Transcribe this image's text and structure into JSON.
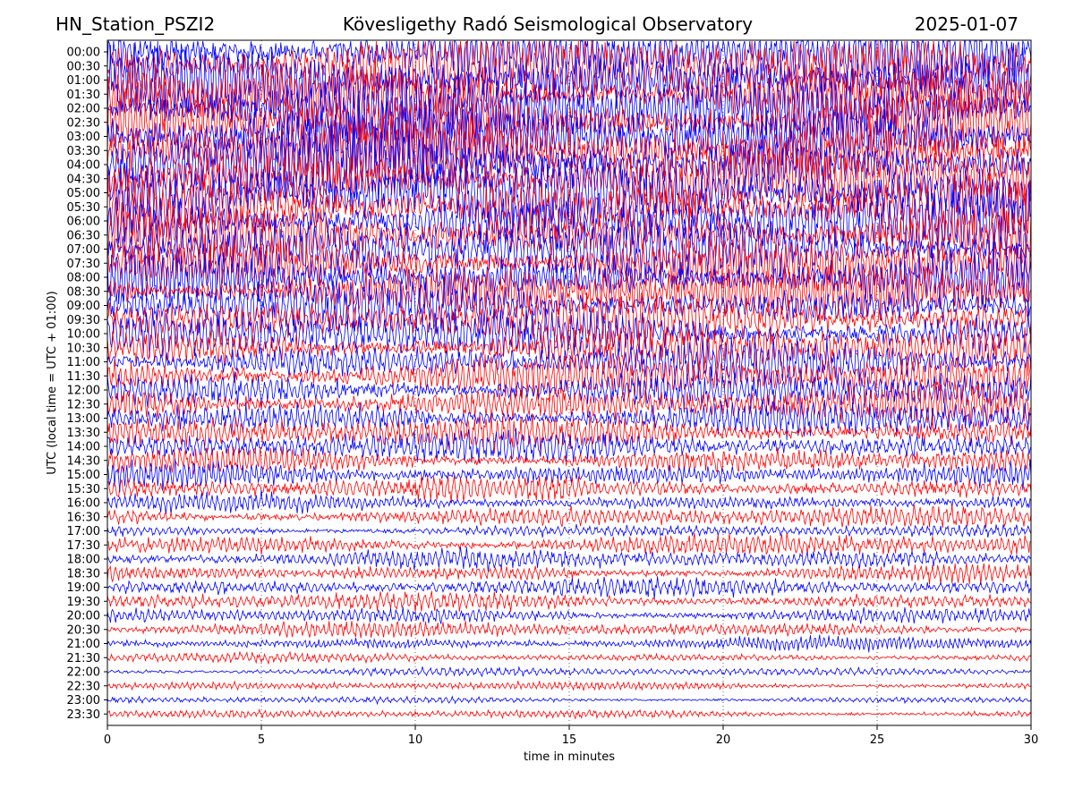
{
  "header": {
    "station": "HN_Station_PSZI2",
    "title": "Kövesligethy Radó Seismological Observatory",
    "date": "2025-01-07"
  },
  "chart_data": {
    "type": "line",
    "title": "Kövesligethy Radó Seismological Observatory",
    "xlabel": "time in minutes",
    "ylabel": "UTC (local time = UTC + 01:00)",
    "xlim": [
      0,
      30
    ],
    "x_ticks": [
      0,
      5,
      10,
      15,
      20,
      25,
      30
    ],
    "grid": "vertical dotted at x ticks",
    "colors": {
      "trace_a": "#0000ff",
      "trace_b": "#ff0000"
    },
    "rows": [
      {
        "label": "00:00",
        "amplitude": 5.0
      },
      {
        "label": "00:30",
        "amplitude": 5.0
      },
      {
        "label": "01:00",
        "amplitude": 5.0
      },
      {
        "label": "01:30",
        "amplitude": 5.0
      },
      {
        "label": "02:00",
        "amplitude": 5.0
      },
      {
        "label": "02:30",
        "amplitude": 5.0
      },
      {
        "label": "03:00",
        "amplitude": 5.0
      },
      {
        "label": "03:30",
        "amplitude": 5.0
      },
      {
        "label": "04:00",
        "amplitude": 5.0
      },
      {
        "label": "04:30",
        "amplitude": 5.0
      },
      {
        "label": "05:00",
        "amplitude": 5.0
      },
      {
        "label": "05:30",
        "amplitude": 4.8
      },
      {
        "label": "06:00",
        "amplitude": 4.6
      },
      {
        "label": "06:30",
        "amplitude": 4.5
      },
      {
        "label": "07:00",
        "amplitude": 4.3
      },
      {
        "label": "07:30",
        "amplitude": 4.2
      },
      {
        "label": "08:00",
        "amplitude": 4.0
      },
      {
        "label": "08:30",
        "amplitude": 3.8
      },
      {
        "label": "09:00",
        "amplitude": 3.6
      },
      {
        "label": "09:30",
        "amplitude": 3.5
      },
      {
        "label": "10:00",
        "amplitude": 3.4
      },
      {
        "label": "10:30",
        "amplitude": 3.2
      },
      {
        "label": "11:00",
        "amplitude": 3.0
      },
      {
        "label": "11:30",
        "amplitude": 3.0
      },
      {
        "label": "12:00",
        "amplitude": 2.9
      },
      {
        "label": "12:30",
        "amplitude": 2.8
      },
      {
        "label": "13:00",
        "amplitude": 2.6
      },
      {
        "label": "13:30",
        "amplitude": 2.4
      },
      {
        "label": "14:00",
        "amplitude": 2.2
      },
      {
        "label": "14:30",
        "amplitude": 2.0
      },
      {
        "label": "15:00",
        "amplitude": 1.9
      },
      {
        "label": "15:30",
        "amplitude": 1.7
      },
      {
        "label": "16:00",
        "amplitude": 1.3
      },
      {
        "label": "16:30",
        "amplitude": 1.5
      },
      {
        "label": "17:00",
        "amplitude": 0.9
      },
      {
        "label": "17:30",
        "amplitude": 1.6
      },
      {
        "label": "18:00",
        "amplitude": 1.4
      },
      {
        "label": "18:30",
        "amplitude": 1.3
      },
      {
        "label": "19:00",
        "amplitude": 1.3
      },
      {
        "label": "19:30",
        "amplitude": 1.3
      },
      {
        "label": "20:00",
        "amplitude": 1.2
      },
      {
        "label": "20:30",
        "amplitude": 1.1
      },
      {
        "label": "21:00",
        "amplitude": 1.0
      },
      {
        "label": "21:30",
        "amplitude": 0.7
      },
      {
        "label": "22:00",
        "amplitude": 0.6
      },
      {
        "label": "22:30",
        "amplitude": 0.6
      },
      {
        "label": "23:00",
        "amplitude": 0.5
      },
      {
        "label": "23:30",
        "amplitude": 0.6
      }
    ]
  }
}
